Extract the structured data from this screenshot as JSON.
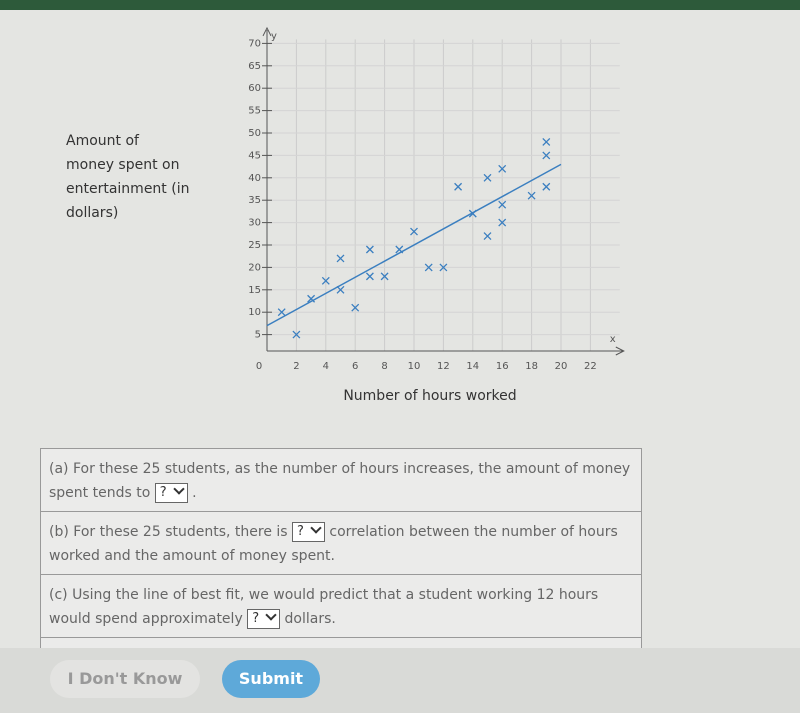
{
  "chart_data": {
    "type": "scatter",
    "y_label": "Amount of money spent on entertainment (in dollars)",
    "x_label": "Number of hours worked",
    "x_axis_letter": "x",
    "y_axis_letter": "y",
    "color": "#3b7fc0",
    "x": [
      1,
      2,
      3,
      4,
      5,
      5,
      6,
      7,
      7,
      8,
      9,
      10,
      11,
      12,
      13,
      14,
      15,
      15,
      16,
      16,
      16,
      18,
      19,
      19,
      19
    ],
    "values": [
      10,
      5,
      13,
      17,
      15,
      22,
      11,
      24,
      18,
      18,
      24,
      28,
      20,
      20,
      38,
      32,
      40,
      27,
      42,
      34,
      30,
      36,
      48,
      45,
      38
    ],
    "fit_line": {
      "x": [
        0,
        20
      ],
      "y": [
        7,
        43
      ]
    },
    "xlim": [
      0,
      24
    ],
    "ylim": [
      0,
      73
    ],
    "xticks": [
      0,
      2,
      4,
      6,
      8,
      10,
      12,
      14,
      16,
      18,
      20,
      22
    ],
    "yticks": [
      5,
      10,
      15,
      20,
      25,
      30,
      35,
      40,
      45,
      50,
      55,
      60,
      65,
      70
    ],
    "grid": true
  },
  "questions": [
    {
      "label": "(a)",
      "text": "For these 25 students, as the number of hours increases, the amount of money spent tends to",
      "select": "?",
      "text_after": "."
    },
    {
      "label": "(b)",
      "text": "For these 25 students, there is",
      "select": "?",
      "text_after": "correlation between the number of hours worked and the amount of money spent."
    },
    {
      "label": "(c)",
      "text": "Using the line of best fit, we would predict that a student working 12 hours would spend approximately",
      "select": "?",
      "text_after": "dollars."
    }
  ],
  "buttons": {
    "dont_know": "I Don't Know",
    "submit": "Submit"
  }
}
